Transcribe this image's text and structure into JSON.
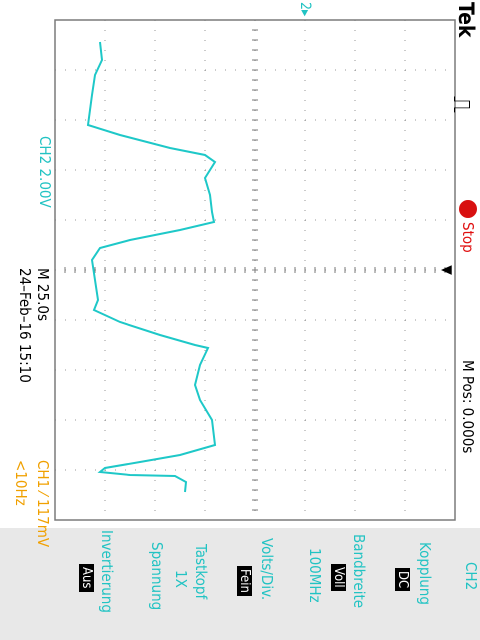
{
  "brand": "Tek",
  "trigger_symbol": "⎍",
  "acq_status": "Stop",
  "trigger_pos_marker": "▲",
  "ch2_ground_marker": "2▸",
  "readout": {
    "ch2_scale": "CH2  2.00V",
    "timebase": "M 25.0s",
    "timestamp": "24–Feb–16 15:10",
    "trigger": "CH1 ⁄ 117mV",
    "frequency": "<10Hz",
    "mpos": "M Pos: 0.000s"
  },
  "menu": {
    "title": "CH2",
    "kopplung": {
      "label": "Kopplung",
      "value": "DC"
    },
    "bandbreite": {
      "label": "Bandbreite",
      "value": "Voll",
      "sub": "100MHz"
    },
    "volts": {
      "label": "Volts/Div.",
      "value": "Fein"
    },
    "tastkopf": {
      "label": "Tastkopf",
      "value": "1X",
      "sub": "Spannung"
    },
    "invert": {
      "label": "Invertierung",
      "value": "Aus"
    }
  },
  "colors": {
    "trace": "#1ec8c8",
    "ch2_text": "#22c3c3",
    "ch1_text": "#f0a000",
    "stop_dot": "#d81010",
    "stop_text": "#e01010",
    "grid": "#7a7a7a",
    "background": "#ffffff",
    "menu_bg": "#e8e8e8"
  }
}
